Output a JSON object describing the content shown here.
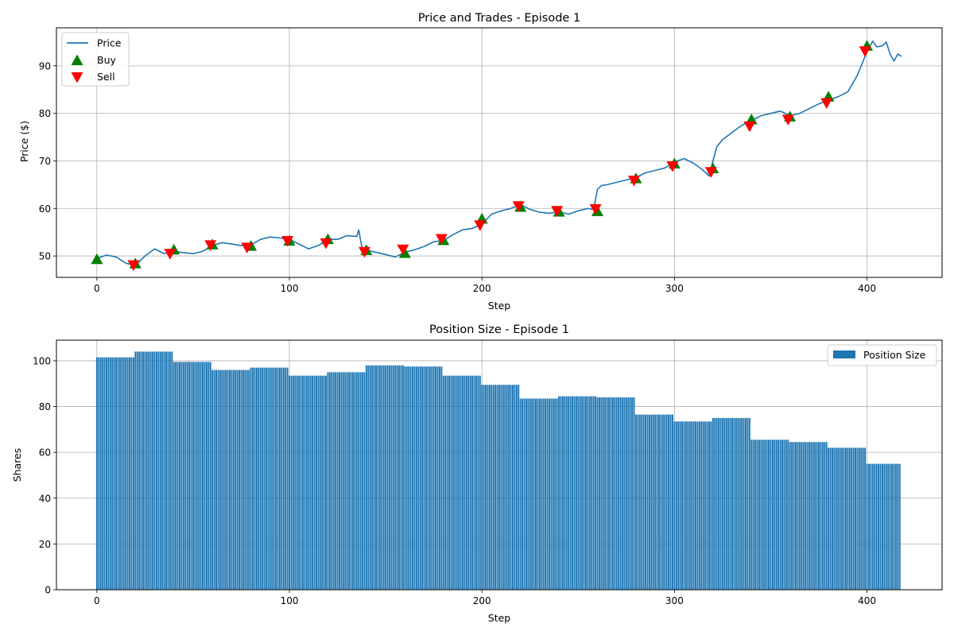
{
  "colors": {
    "price": "#1f77b4",
    "buy": "#008000",
    "sell": "#ff0000",
    "bars": "#1f77b4",
    "grid": "#b0b0b0"
  },
  "chart_data": [
    {
      "type": "line",
      "title": "Price and Trades - Episode 1",
      "xlabel": "Step",
      "ylabel": "Price ($)",
      "xlim": [
        -21,
        439
      ],
      "ylim": [
        45.5,
        98
      ],
      "xticks": [
        0,
        100,
        200,
        300,
        400
      ],
      "yticks": [
        50,
        60,
        70,
        80,
        90
      ],
      "grid": true,
      "legend_position": "top-left",
      "legend": [
        "Price",
        "Buy",
        "Sell"
      ],
      "price_series": {
        "name": "Price",
        "x": [
          0,
          5,
          10,
          15,
          20,
          25,
          30,
          35,
          40,
          45,
          50,
          55,
          60,
          65,
          70,
          75,
          80,
          85,
          90,
          95,
          100,
          105,
          110,
          115,
          120,
          125,
          130,
          135,
          136,
          138,
          140,
          145,
          150,
          155,
          160,
          165,
          170,
          175,
          180,
          185,
          190,
          195,
          200,
          205,
          210,
          215,
          220,
          225,
          230,
          235,
          240,
          245,
          250,
          255,
          258,
          260,
          262,
          265,
          270,
          275,
          280,
          285,
          290,
          295,
          300,
          305,
          310,
          315,
          318,
          320,
          322,
          325,
          330,
          335,
          340,
          345,
          350,
          355,
          360,
          365,
          370,
          375,
          380,
          385,
          390,
          395,
          400,
          403,
          405,
          408,
          410,
          412,
          414,
          416,
          418
        ],
        "y": [
          49.5,
          50.2,
          49.8,
          48.5,
          48.0,
          50.0,
          51.5,
          50.5,
          51.0,
          50.7,
          50.5,
          51.0,
          52.2,
          52.8,
          52.5,
          52.2,
          52.3,
          53.5,
          54.0,
          53.8,
          53.5,
          52.5,
          51.5,
          52.2,
          53.5,
          53.5,
          54.3,
          54.1,
          55.5,
          51.0,
          51.2,
          50.8,
          50.3,
          49.8,
          50.8,
          51.3,
          52.0,
          53.0,
          53.2,
          54.5,
          55.5,
          55.8,
          56.7,
          58.8,
          59.5,
          60.0,
          60.8,
          59.8,
          59.2,
          59.0,
          59.3,
          58.8,
          59.5,
          60.0,
          59.8,
          64.0,
          64.8,
          65.0,
          65.5,
          66.0,
          66.5,
          67.5,
          68.0,
          68.5,
          69.8,
          70.5,
          69.5,
          68.0,
          66.8,
          70.0,
          73.0,
          74.5,
          76.0,
          77.5,
          78.5,
          79.5,
          80.0,
          80.5,
          79.5,
          80.0,
          81.0,
          82.0,
          82.8,
          83.5,
          84.5,
          88.0,
          93.0,
          95.2,
          94.0,
          94.2,
          95.0,
          92.5,
          91.0,
          92.5,
          92.0
        ]
      },
      "buy_series": {
        "name": "Buy",
        "x": [
          0,
          20,
          40,
          60,
          80,
          100,
          120,
          140,
          160,
          180,
          200,
          220,
          240,
          260,
          280,
          300,
          320,
          340,
          360,
          380,
          400
        ],
        "y": [
          49.3,
          48.4,
          51.3,
          52.4,
          52.1,
          53.2,
          53.5,
          51.2,
          50.6,
          53.3,
          57.8,
          60.3,
          59.3,
          59.4,
          66.3,
          69.4,
          68.4,
          78.7,
          79.3,
          83.5,
          94.2
        ]
      },
      "sell_series": {
        "name": "Sell",
        "x": [
          19,
          38,
          59,
          78,
          99,
          119,
          139,
          159,
          179,
          199,
          219,
          239,
          259,
          279,
          299,
          319,
          339,
          359,
          379,
          399
        ],
        "y": [
          48.1,
          50.5,
          52.3,
          51.8,
          53.2,
          52.7,
          50.9,
          51.4,
          53.6,
          56.5,
          60.5,
          59.5,
          59.9,
          65.9,
          68.9,
          67.7,
          77.3,
          78.7,
          82.2,
          93.1
        ]
      }
    },
    {
      "type": "bar",
      "title": "Position Size - Episode 1",
      "xlabel": "Step",
      "ylabel": "Shares",
      "xlim": [
        -21,
        439
      ],
      "ylim": [
        0,
        109
      ],
      "xticks": [
        0,
        100,
        200,
        300,
        400
      ],
      "yticks": [
        0,
        20,
        40,
        60,
        80,
        100
      ],
      "grid": true,
      "legend_position": "top-right",
      "legend": [
        "Position Size"
      ],
      "segments": [
        {
          "start": 0,
          "end": 19,
          "value": 101.5
        },
        {
          "start": 20,
          "end": 39,
          "value": 104.0
        },
        {
          "start": 40,
          "end": 59,
          "value": 99.5
        },
        {
          "start": 60,
          "end": 79,
          "value": 96.0
        },
        {
          "start": 80,
          "end": 99,
          "value": 97.0
        },
        {
          "start": 100,
          "end": 119,
          "value": 93.5
        },
        {
          "start": 120,
          "end": 139,
          "value": 95.0
        },
        {
          "start": 140,
          "end": 159,
          "value": 98.0
        },
        {
          "start": 160,
          "end": 179,
          "value": 97.5
        },
        {
          "start": 180,
          "end": 199,
          "value": 93.5
        },
        {
          "start": 200,
          "end": 219,
          "value": 89.5
        },
        {
          "start": 220,
          "end": 239,
          "value": 83.5
        },
        {
          "start": 240,
          "end": 259,
          "value": 84.5
        },
        {
          "start": 260,
          "end": 279,
          "value": 84.0
        },
        {
          "start": 280,
          "end": 299,
          "value": 76.5
        },
        {
          "start": 300,
          "end": 319,
          "value": 73.5
        },
        {
          "start": 320,
          "end": 339,
          "value": 75.0
        },
        {
          "start": 340,
          "end": 359,
          "value": 65.5
        },
        {
          "start": 360,
          "end": 379,
          "value": 64.5
        },
        {
          "start": 380,
          "end": 399,
          "value": 62.0
        },
        {
          "start": 400,
          "end": 417,
          "value": 55.0
        }
      ]
    }
  ]
}
